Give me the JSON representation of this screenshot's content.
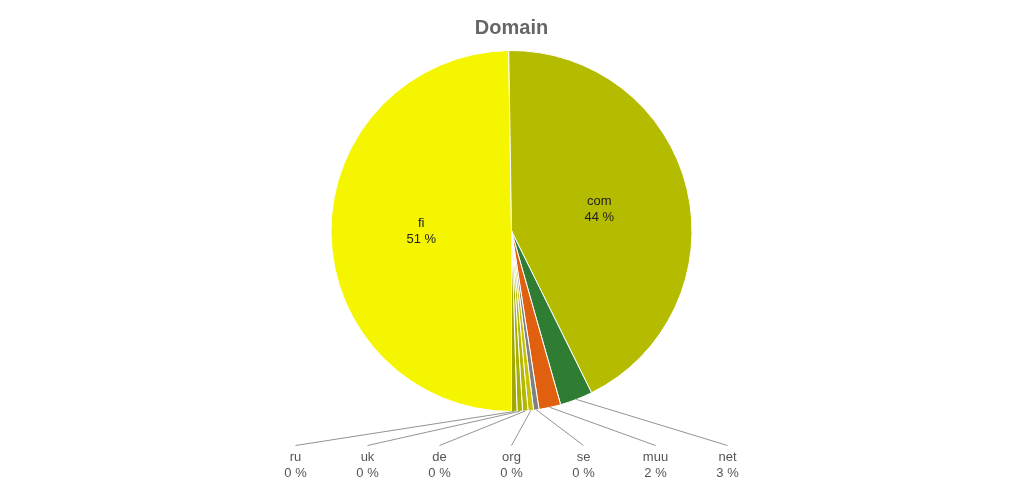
{
  "chart_data": {
    "type": "pie",
    "title": "Domain",
    "categories": [
      "fi",
      "com",
      "net",
      "muu",
      "se",
      "org",
      "de",
      "uk",
      "ru"
    ],
    "values": [
      51,
      44,
      3,
      2,
      0.5,
      0.5,
      0.5,
      0.5,
      0.5
    ],
    "value_labels": [
      "51 %",
      "44 %",
      "3 %",
      "2 %",
      "0 %",
      "0 %",
      "0 %",
      "0 %",
      "0 %"
    ],
    "colors": [
      "#f5f500",
      "#b5bc00",
      "#2e7d32",
      "#e06010",
      "#808080",
      "#c8c000",
      "#b0b800",
      "#a8b000",
      "#a0a800"
    ],
    "data_labels": true,
    "legend": false
  }
}
